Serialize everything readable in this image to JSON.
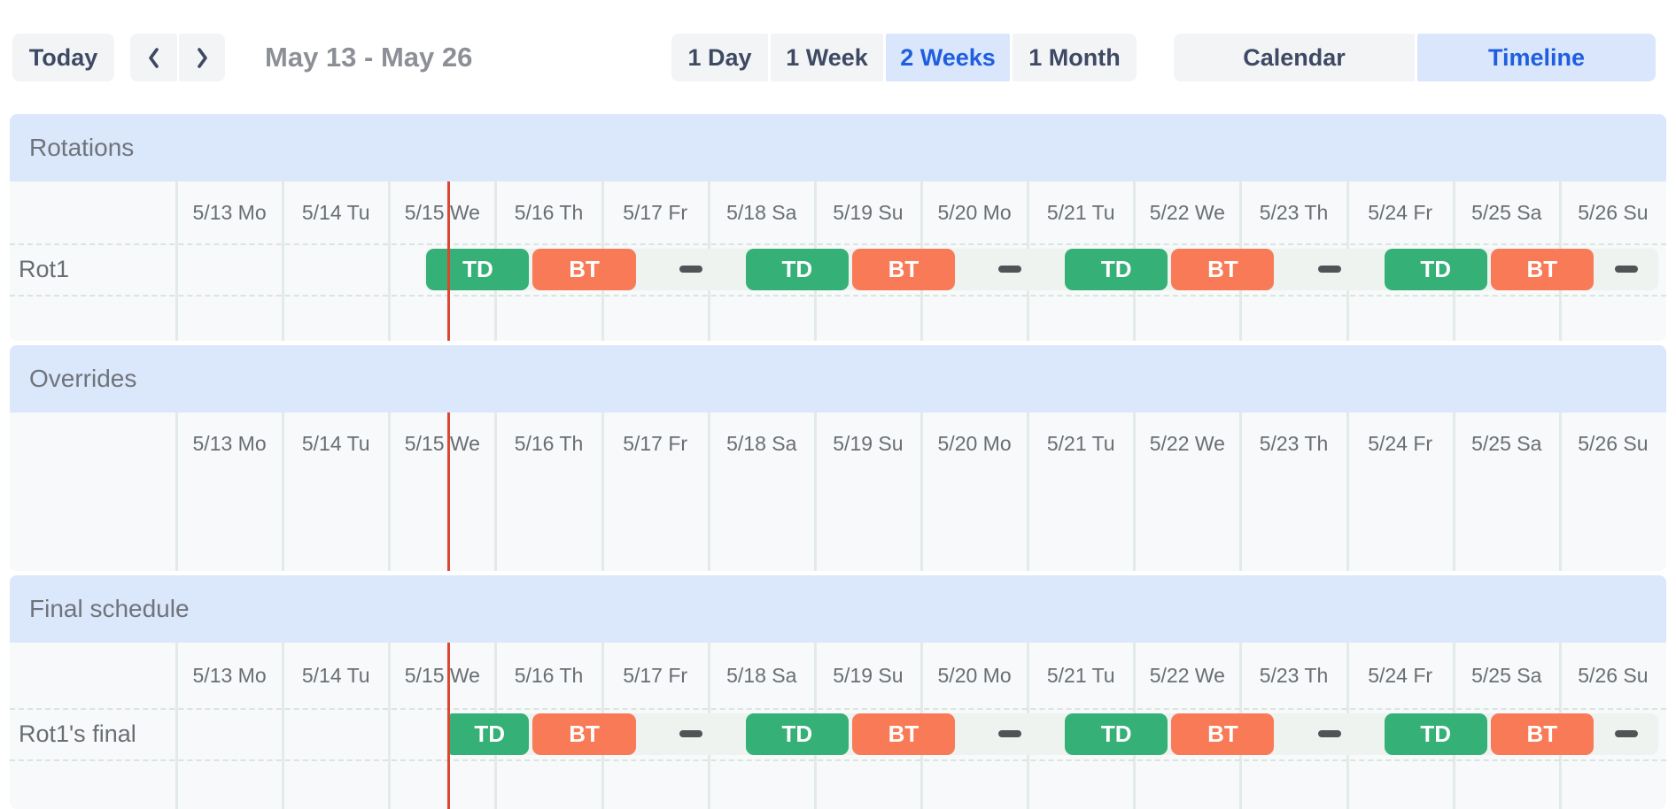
{
  "toolbar": {
    "today_label": "Today",
    "range_title": "May 13 - May 26",
    "view_buttons": [
      {
        "label": "1 Day",
        "selected": false
      },
      {
        "label": "1 Week",
        "selected": false
      },
      {
        "label": "2 Weeks",
        "selected": true
      },
      {
        "label": "1 Month",
        "selected": false
      }
    ],
    "mode_buttons": [
      {
        "label": "Calendar",
        "selected": false
      },
      {
        "label": "Timeline",
        "selected": true
      }
    ]
  },
  "colors": {
    "accent_blue": "#1f5ede",
    "selected_bg": "#d9e6fc",
    "button_bg": "#f3f4f6",
    "button_text": "#3e4a63",
    "band_bg": "#dbe7fa",
    "band_text": "#6f747c",
    "grid_bg": "#f7f9fa",
    "grid_line": "#e2ebe7",
    "row_dash": "#d9e5df",
    "muted_text": "#696e74",
    "shift_green": "#35b077",
    "shift_orange": "#f87a56",
    "empty_dash": "#515356",
    "track_bg": "#eef3f0",
    "now_line": "#dc4732"
  },
  "days": [
    "5/13 Mo",
    "5/14 Tu",
    "5/15 We",
    "5/16 Th",
    "5/17 Fr",
    "5/18 Sa",
    "5/19 Su",
    "5/20 Mo",
    "5/21 Tu",
    "5/22 We",
    "5/23 Th",
    "5/24 Fr",
    "5/25 Sa",
    "5/26 Su"
  ],
  "now": {
    "day": 2,
    "hour": 13.3
  },
  "sections": [
    {
      "title": "Rotations",
      "rows": [
        {
          "label": "Rot1",
          "items": [
            {
              "kind": "shift",
              "label": "TD",
              "palette": "green",
              "start": {
                "day": 2,
                "hour": 8
              },
              "end": {
                "day": 3,
                "hour": 8
              }
            },
            {
              "kind": "shift",
              "label": "BT",
              "palette": "orange",
              "start": {
                "day": 3,
                "hour": 8
              },
              "end": {
                "day": 4,
                "hour": 8
              }
            },
            {
              "kind": "empty",
              "start": {
                "day": 4,
                "hour": 8
              },
              "end": {
                "day": 5,
                "hour": 8
              }
            },
            {
              "kind": "shift",
              "label": "TD",
              "palette": "green",
              "start": {
                "day": 5,
                "hour": 8
              },
              "end": {
                "day": 6,
                "hour": 8
              }
            },
            {
              "kind": "shift",
              "label": "BT",
              "palette": "orange",
              "start": {
                "day": 6,
                "hour": 8
              },
              "end": {
                "day": 7,
                "hour": 8
              }
            },
            {
              "kind": "empty",
              "start": {
                "day": 7,
                "hour": 8
              },
              "end": {
                "day": 8,
                "hour": 8
              }
            },
            {
              "kind": "shift",
              "label": "TD",
              "palette": "green",
              "start": {
                "day": 8,
                "hour": 8
              },
              "end": {
                "day": 9,
                "hour": 8
              }
            },
            {
              "kind": "shift",
              "label": "BT",
              "palette": "orange",
              "start": {
                "day": 9,
                "hour": 8
              },
              "end": {
                "day": 10,
                "hour": 8
              }
            },
            {
              "kind": "empty",
              "start": {
                "day": 10,
                "hour": 8
              },
              "end": {
                "day": 11,
                "hour": 8
              }
            },
            {
              "kind": "shift",
              "label": "TD",
              "palette": "green",
              "start": {
                "day": 11,
                "hour": 8
              },
              "end": {
                "day": 12,
                "hour": 8
              }
            },
            {
              "kind": "shift",
              "label": "BT",
              "palette": "orange",
              "start": {
                "day": 12,
                "hour": 8
              },
              "end": {
                "day": 13,
                "hour": 8
              }
            },
            {
              "kind": "empty",
              "start": {
                "day": 13,
                "hour": 8
              },
              "end": {
                "day": 14,
                "hour": 8
              }
            }
          ]
        }
      ]
    },
    {
      "title": "Overrides",
      "rows": []
    },
    {
      "title": "Final schedule",
      "rows": [
        {
          "label": "Rot1's final",
          "items": [
            {
              "kind": "shift",
              "label": "TD",
              "palette": "green",
              "start": {
                "day": 2,
                "hour": 13.3
              },
              "end": {
                "day": 3,
                "hour": 8
              }
            },
            {
              "kind": "shift",
              "label": "BT",
              "palette": "orange",
              "start": {
                "day": 3,
                "hour": 8
              },
              "end": {
                "day": 4,
                "hour": 8
              }
            },
            {
              "kind": "empty",
              "start": {
                "day": 4,
                "hour": 8
              },
              "end": {
                "day": 5,
                "hour": 8
              }
            },
            {
              "kind": "shift",
              "label": "TD",
              "palette": "green",
              "start": {
                "day": 5,
                "hour": 8
              },
              "end": {
                "day": 6,
                "hour": 8
              }
            },
            {
              "kind": "shift",
              "label": "BT",
              "palette": "orange",
              "start": {
                "day": 6,
                "hour": 8
              },
              "end": {
                "day": 7,
                "hour": 8
              }
            },
            {
              "kind": "empty",
              "start": {
                "day": 7,
                "hour": 8
              },
              "end": {
                "day": 8,
                "hour": 8
              }
            },
            {
              "kind": "shift",
              "label": "TD",
              "palette": "green",
              "start": {
                "day": 8,
                "hour": 8
              },
              "end": {
                "day": 9,
                "hour": 8
              }
            },
            {
              "kind": "shift",
              "label": "BT",
              "palette": "orange",
              "start": {
                "day": 9,
                "hour": 8
              },
              "end": {
                "day": 10,
                "hour": 8
              }
            },
            {
              "kind": "empty",
              "start": {
                "day": 10,
                "hour": 8
              },
              "end": {
                "day": 11,
                "hour": 8
              }
            },
            {
              "kind": "shift",
              "label": "TD",
              "palette": "green",
              "start": {
                "day": 11,
                "hour": 8
              },
              "end": {
                "day": 12,
                "hour": 8
              }
            },
            {
              "kind": "shift",
              "label": "BT",
              "palette": "orange",
              "start": {
                "day": 12,
                "hour": 8
              },
              "end": {
                "day": 13,
                "hour": 8
              }
            },
            {
              "kind": "empty",
              "start": {
                "day": 13,
                "hour": 8
              },
              "end": {
                "day": 14,
                "hour": 8
              }
            }
          ]
        }
      ]
    }
  ]
}
